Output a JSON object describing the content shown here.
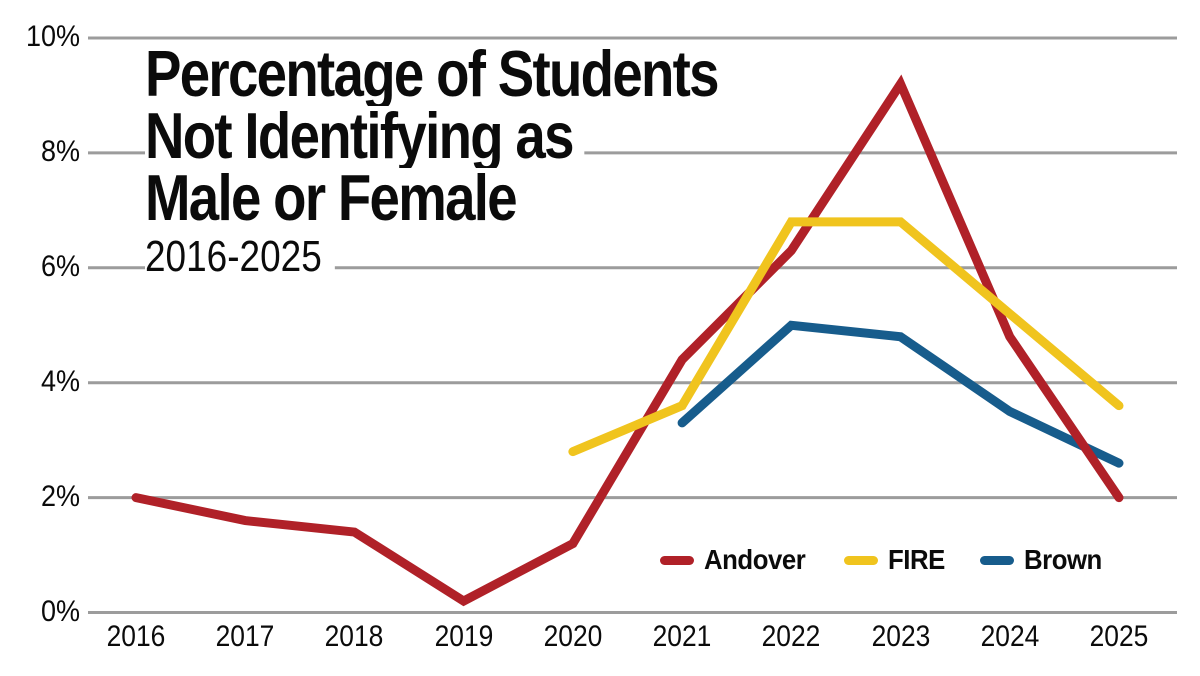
{
  "title": {
    "lines": [
      "Percentage of Students",
      "Not Identifying as",
      "Male or Female"
    ],
    "subtitle": "2016-2025"
  },
  "y_axis": {
    "ticks": [
      {
        "label": "0%",
        "value": 0
      },
      {
        "label": "2%",
        "value": 2
      },
      {
        "label": "4%",
        "value": 4
      },
      {
        "label": "6%",
        "value": 6
      },
      {
        "label": "8%",
        "value": 8
      },
      {
        "label": "10%",
        "value": 10
      }
    ]
  },
  "x_axis": {
    "labels": [
      "2016",
      "2017",
      "2018",
      "2019",
      "2020",
      "2021",
      "2022",
      "2023",
      "2024",
      "2025"
    ]
  },
  "legend": [
    {
      "label": "Andover",
      "color": "#B02128"
    },
    {
      "label": "FIRE",
      "color": "#F0C41E"
    },
    {
      "label": "Brown",
      "color": "#175C8C"
    }
  ],
  "colors": {
    "background": "#FFFFFF",
    "gridline": "#9C9C9C",
    "text": "#0B0B0B",
    "andover_red": "#B02128",
    "fire_yellow": "#F0C41E",
    "brown_blue": "#175C8C"
  },
  "chart_data": {
    "type": "line",
    "title": "Percentage of Students Not Identifying as Male or Female",
    "subtitle": "2016-2025",
    "xlabel": "",
    "ylabel": "",
    "ylim": [
      0,
      10
    ],
    "y_tick_labels": [
      "0%",
      "2%",
      "4%",
      "6%",
      "8%",
      "10%"
    ],
    "grid": "horizontal",
    "legend_position": "inside-bottom-right",
    "categories": [
      2016,
      2017,
      2018,
      2019,
      2020,
      2021,
      2022,
      2023,
      2024,
      2025
    ],
    "series": [
      {
        "name": "Andover",
        "color": "#B02128",
        "values": [
          2.0,
          1.6,
          1.4,
          0.2,
          1.2,
          4.4,
          6.3,
          9.2,
          4.8,
          2.0
        ]
      },
      {
        "name": "FIRE",
        "color": "#F0C41E",
        "values": [
          null,
          null,
          null,
          null,
          2.8,
          3.6,
          6.8,
          6.8,
          5.2,
          3.6
        ]
      },
      {
        "name": "Brown",
        "color": "#175C8C",
        "values": [
          null,
          null,
          null,
          null,
          null,
          3.3,
          5.0,
          4.8,
          3.5,
          2.6
        ]
      }
    ],
    "draw_order": [
      "Brown",
      "Andover",
      "FIRE"
    ]
  }
}
